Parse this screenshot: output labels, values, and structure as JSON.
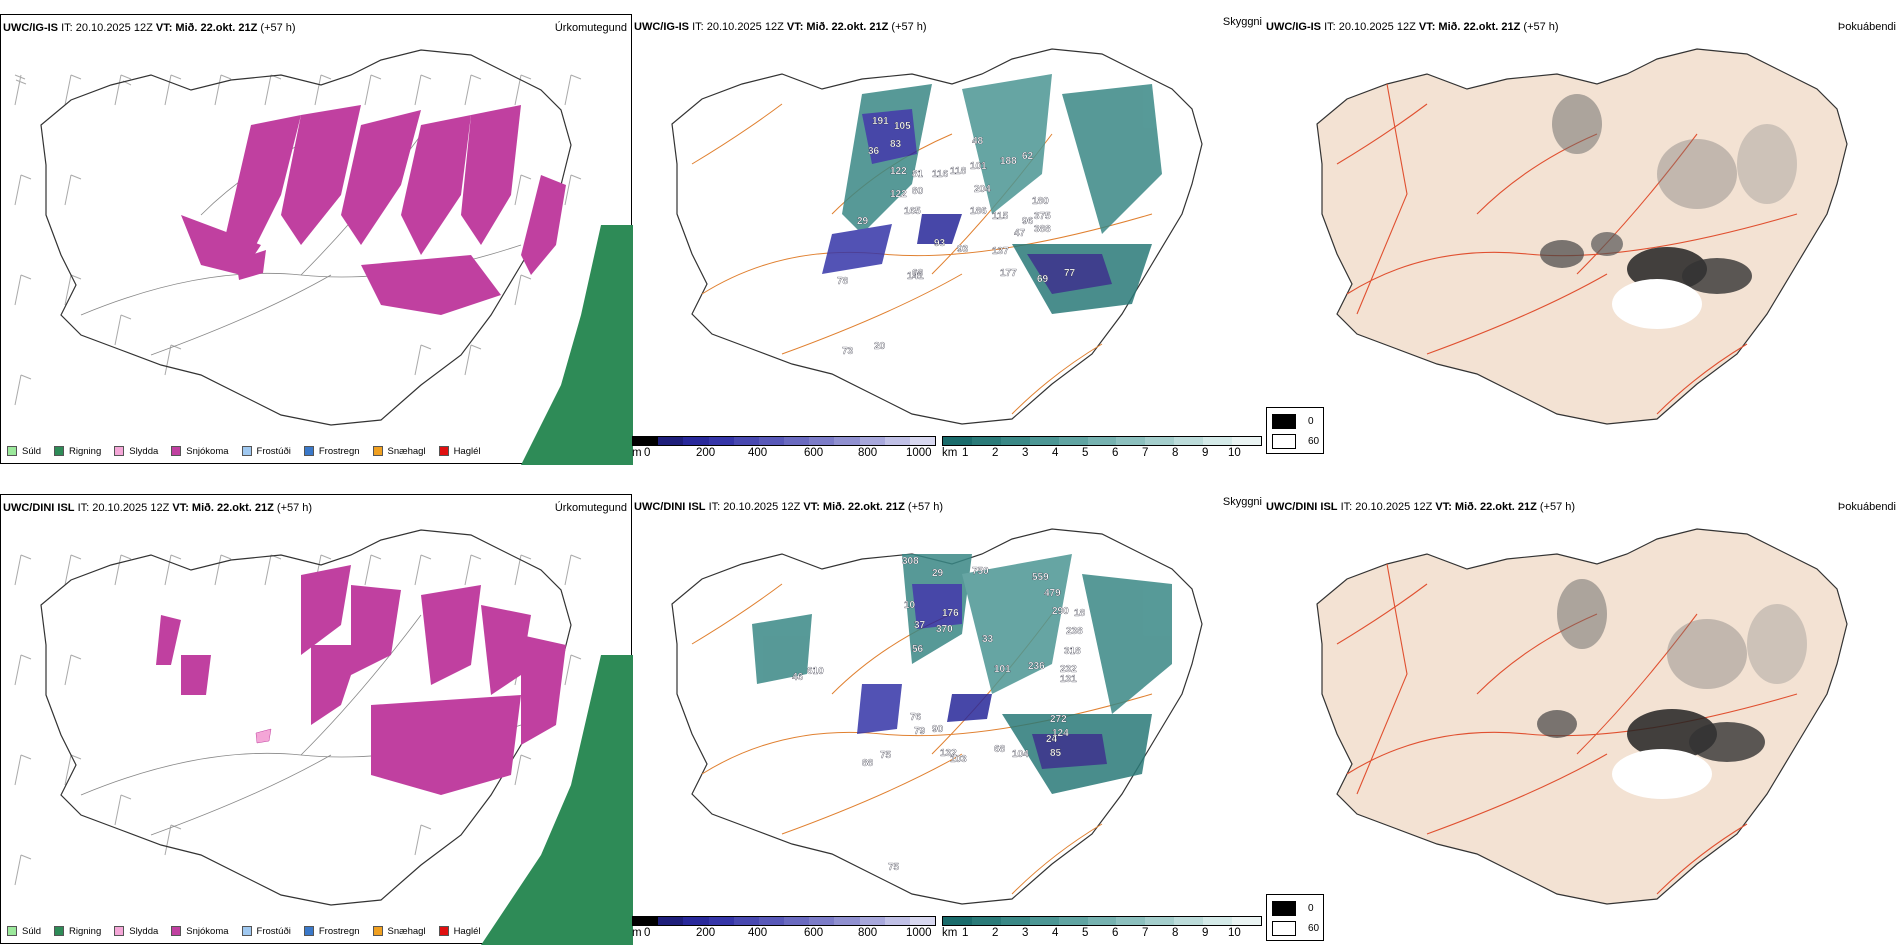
{
  "rows": [
    {
      "model": "UWC/IG-IS",
      "init": "IT: 20.10.2025 12Z",
      "valid_prefix": "VT:",
      "valid": "Mið. 22.okt. 21Z",
      "lead": "(+57 h)",
      "panel_titles": {
        "precip_type": "Úrkomutegund",
        "visibility": "Skyggni",
        "fog": "Þokuábendi"
      },
      "labels": [
        "191",
        "105",
        "83",
        "36",
        "122",
        "81",
        "80",
        "122",
        "165",
        "116",
        "118",
        "48",
        "101",
        "204",
        "188",
        "186",
        "115",
        "96",
        "62",
        "29",
        "137",
        "180",
        "375",
        "388",
        "47",
        "93",
        "68",
        "93",
        "177",
        "69",
        "77",
        "141",
        "78",
        "73",
        "20"
      ]
    },
    {
      "model": "UWC/DINI ISL",
      "init": "IT: 20.10.2025 12Z",
      "valid_prefix": "VT:",
      "valid": "Mið. 22.okt. 21Z",
      "lead": "(+57 h)",
      "panel_titles": {
        "precip_type": "Úrkomutegund",
        "visibility": "Skyggni",
        "fog": "Þokuábendi"
      },
      "labels": [
        "308",
        "29",
        "750",
        "559",
        "479",
        "290",
        "18",
        "10",
        "176",
        "37",
        "370",
        "56",
        "33",
        "236",
        "101",
        "318",
        "238",
        "232",
        "131",
        "79",
        "90",
        "132",
        "103",
        "68",
        "104",
        "85",
        "124",
        "272",
        "24",
        "76",
        "75",
        "88",
        "46",
        "610",
        "75"
      ]
    }
  ],
  "legend_precip": [
    "Súld",
    "Rigning",
    "Slydda",
    "Snjókoma",
    "Frostúði",
    "Frostregn",
    "Snæhagl",
    "Haglél"
  ],
  "legend_colors": [
    "#9be89b",
    "#2e8b57",
    "#f4a6d7",
    "#c040a0",
    "#9fc8f0",
    "#3a78c9",
    "#f0a020",
    "#e01010"
  ],
  "cloudbase_unit": "m",
  "cloudbase_ticks": [
    "0",
    "200",
    "400",
    "600",
    "800",
    "1000"
  ],
  "cloudbase_colors": [
    "#000000",
    "#1e1e7a",
    "#28289a",
    "#3535a8",
    "#4848b0",
    "#5858b8",
    "#6a6ac0",
    "#7c7cc8",
    "#9090d0",
    "#a8a8dc",
    "#c0c0e6",
    "#d8d8f0"
  ],
  "vis_unit": "km",
  "vis_ticks": [
    "1",
    "2",
    "3",
    "4",
    "5",
    "6",
    "7",
    "8",
    "9",
    "10"
  ],
  "vis_colors": [
    "#1a6b6b",
    "#2a7a78",
    "#3a8886",
    "#4c9694",
    "#60a4a2",
    "#76b2b0",
    "#8cc0be",
    "#a4cecc",
    "#bcdcda",
    "#d4eae8",
    "#eaf4f3"
  ],
  "fog_legend": [
    "0",
    "60"
  ],
  "fog_colors": [
    "#000000",
    "#ffffff"
  ]
}
